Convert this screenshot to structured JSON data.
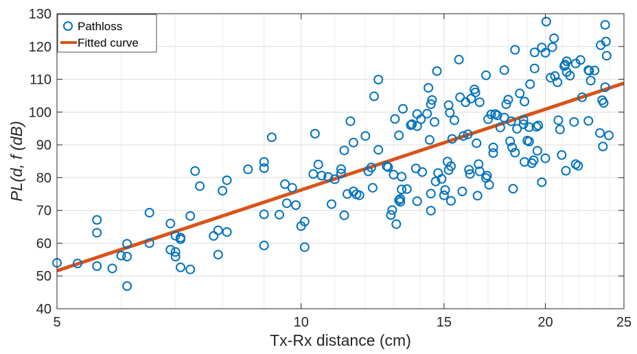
{
  "chart_data": {
    "type": "scatter",
    "xlabel": "Tx-Rx distance (cm)",
    "ylabel": "PL(d, f (dB)",
    "x_scale": "log",
    "xlim": [
      5,
      25
    ],
    "ylim": [
      40,
      130
    ],
    "x_ticks": [
      5,
      10,
      15,
      20,
      25
    ],
    "y_ticks": [
      40,
      50,
      60,
      70,
      80,
      90,
      100,
      110,
      120,
      130
    ],
    "grid": true,
    "legend_position": "top-left",
    "series": [
      {
        "name": "Pathloss",
        "style": "circle-marker",
        "color": "#0072BD",
        "points": [
          [
            5.0,
            54.0
          ],
          [
            5.3,
            53.8
          ],
          [
            5.6,
            53.0
          ],
          [
            5.6,
            63.2
          ],
          [
            5.6,
            67.1
          ],
          [
            5.85,
            52.3
          ],
          [
            6.0,
            56.2
          ],
          [
            6.1,
            55.9
          ],
          [
            6.1,
            59.8
          ],
          [
            6.1,
            46.9
          ],
          [
            6.5,
            60.0
          ],
          [
            6.5,
            69.3
          ],
          [
            6.9,
            66.0
          ],
          [
            6.9,
            58.0
          ],
          [
            7.0,
            57.3
          ],
          [
            7.0,
            55.9
          ],
          [
            7.0,
            62.3
          ],
          [
            7.1,
            61.7
          ],
          [
            7.1,
            61.2
          ],
          [
            7.1,
            52.6
          ],
          [
            7.3,
            52.0
          ],
          [
            7.3,
            68.3
          ],
          [
            7.4,
            82.0
          ],
          [
            7.5,
            77.4
          ],
          [
            7.8,
            62.2
          ],
          [
            7.9,
            56.5
          ],
          [
            7.9,
            63.9
          ],
          [
            8.0,
            76.0
          ],
          [
            8.1,
            79.2
          ],
          [
            8.1,
            63.4
          ],
          [
            8.6,
            82.5
          ],
          [
            9.0,
            59.3
          ],
          [
            9.0,
            68.8
          ],
          [
            9.0,
            82.9
          ],
          [
            9.0,
            84.8
          ],
          [
            9.2,
            92.3
          ],
          [
            9.4,
            68.7
          ],
          [
            9.55,
            78.0
          ],
          [
            9.6,
            72.2
          ],
          [
            9.75,
            76.9
          ],
          [
            9.85,
            71.6
          ],
          [
            10.0,
            65.2
          ],
          [
            10.1,
            58.8
          ],
          [
            10.1,
            66.6
          ],
          [
            10.35,
            81.1
          ],
          [
            10.4,
            93.4
          ],
          [
            10.5,
            84.0
          ],
          [
            10.6,
            80.6
          ],
          [
            10.8,
            80.2
          ],
          [
            10.9,
            71.9
          ],
          [
            11.0,
            79.5
          ],
          [
            11.2,
            82.6
          ],
          [
            11.2,
            81.3
          ],
          [
            11.3,
            88.3
          ],
          [
            11.3,
            68.5
          ],
          [
            11.4,
            75.0
          ],
          [
            11.5,
            97.2
          ],
          [
            11.6,
            90.7
          ],
          [
            11.6,
            75.8
          ],
          [
            11.7,
            74.9
          ],
          [
            11.8,
            74.6
          ],
          [
            12.0,
            92.7
          ],
          [
            12.1,
            81.9
          ],
          [
            12.2,
            83.1
          ],
          [
            12.25,
            76.9
          ],
          [
            12.3,
            104.8
          ],
          [
            12.45,
            88.5
          ],
          [
            12.45,
            109.9
          ],
          [
            12.75,
            83.5
          ],
          [
            12.8,
            83.2
          ],
          [
            12.9,
            68.6
          ],
          [
            12.95,
            70.1
          ],
          [
            13.0,
            80.9
          ],
          [
            13.05,
            97.9
          ],
          [
            13.1,
            65.8
          ],
          [
            13.2,
            92.9
          ],
          [
            13.2,
            73.1
          ],
          [
            13.25,
            72.6
          ],
          [
            13.25,
            73.5
          ],
          [
            13.3,
            76.4
          ],
          [
            13.3,
            80.3
          ],
          [
            13.35,
            101.0
          ],
          [
            13.5,
            76.5
          ],
          [
            13.65,
            96.0
          ],
          [
            13.7,
            96.3
          ],
          [
            13.85,
            82.8
          ],
          [
            13.9,
            95.7
          ],
          [
            13.9,
            99.4
          ],
          [
            13.9,
            72.8
          ],
          [
            14.05,
            97.8
          ],
          [
            14.1,
            81.7
          ],
          [
            14.3,
            99.5
          ],
          [
            14.35,
            107.4
          ],
          [
            14.4,
            91.5
          ],
          [
            14.45,
            102.4
          ],
          [
            14.45,
            75.1
          ],
          [
            14.45,
            69.9
          ],
          [
            14.5,
            103.7
          ],
          [
            14.6,
            97.0
          ],
          [
            14.65,
            78.8
          ],
          [
            14.7,
            112.5
          ],
          [
            14.75,
            81.4
          ],
          [
            14.9,
            79.6
          ],
          [
            15.0,
            74.6
          ],
          [
            15.05,
            76.2
          ],
          [
            15.15,
            84.9
          ],
          [
            15.2,
            82.3
          ],
          [
            15.2,
            102.1
          ],
          [
            15.25,
            99.8
          ],
          [
            15.3,
            72.9
          ],
          [
            15.3,
            83.5
          ],
          [
            15.35,
            91.8
          ],
          [
            15.45,
            97.5
          ],
          [
            15.65,
            116.0
          ],
          [
            15.7,
            104.5
          ],
          [
            15.8,
            75.8
          ],
          [
            15.85,
            92.7
          ],
          [
            15.95,
            103.0
          ],
          [
            16.05,
            93.2
          ],
          [
            16.1,
            82.4
          ],
          [
            16.15,
            81.1
          ],
          [
            16.2,
            104.1
          ],
          [
            16.35,
            106.9
          ],
          [
            16.4,
            106.0
          ],
          [
            16.45,
            90.5
          ],
          [
            16.5,
            74.5
          ],
          [
            16.55,
            84.1
          ],
          [
            16.6,
            81.9
          ],
          [
            16.6,
            103.0
          ],
          [
            16.9,
            111.2
          ],
          [
            16.9,
            79.9
          ],
          [
            16.95,
            80.6
          ],
          [
            17.0,
            97.8
          ],
          [
            17.05,
            77.8
          ],
          [
            17.15,
            99.3
          ],
          [
            17.25,
            87.5
          ],
          [
            17.25,
            89.2
          ],
          [
            17.35,
            99.4
          ],
          [
            17.45,
            99.0
          ],
          [
            17.6,
            95.3
          ],
          [
            17.8,
            98.3
          ],
          [
            17.8,
            112.8
          ],
          [
            17.9,
            102.4
          ],
          [
            18.0,
            103.8
          ],
          [
            18.1,
            91.1
          ],
          [
            18.15,
            97.2
          ],
          [
            18.2,
            89.2
          ],
          [
            18.25,
            76.6
          ],
          [
            18.35,
            87.6
          ],
          [
            18.35,
            119.0
          ],
          [
            18.45,
            94.9
          ],
          [
            18.6,
            105.7
          ],
          [
            18.8,
            97.6
          ],
          [
            18.8,
            96.3
          ],
          [
            18.85,
            84.8
          ],
          [
            18.85,
            103.2
          ],
          [
            19.0,
            91.3
          ],
          [
            19.1,
            91.0
          ],
          [
            19.1,
            95.4
          ],
          [
            19.15,
            108.5
          ],
          [
            19.25,
            84.4
          ],
          [
            19.35,
            85.3
          ],
          [
            19.4,
            113.3
          ],
          [
            19.4,
            118.2
          ],
          [
            19.5,
            95.5
          ],
          [
            19.55,
            88.2
          ],
          [
            19.6,
            95.9
          ],
          [
            19.8,
            78.6
          ],
          [
            19.8,
            119.7
          ],
          [
            20.0,
            85.9
          ],
          [
            20.0,
            118.1
          ],
          [
            20.05,
            127.6
          ],
          [
            20.3,
            110.5
          ],
          [
            20.4,
            119.8
          ],
          [
            20.5,
            122.5
          ],
          [
            20.55,
            111.0
          ],
          [
            20.7,
            109.1
          ],
          [
            20.75,
            97.5
          ],
          [
            20.85,
            94.7
          ],
          [
            20.95,
            86.9
          ],
          [
            21.1,
            114.0
          ],
          [
            21.15,
            114.5
          ],
          [
            21.2,
            82.1
          ],
          [
            21.25,
            112.2
          ],
          [
            21.25,
            115.5
          ],
          [
            21.45,
            111.1
          ],
          [
            21.7,
            97.0
          ],
          [
            21.8,
            114.8
          ],
          [
            21.8,
            84.1
          ],
          [
            21.95,
            83.6
          ],
          [
            22.1,
            115.9
          ],
          [
            22.2,
            104.5
          ],
          [
            22.6,
            97.3
          ],
          [
            22.6,
            112.8
          ],
          [
            22.65,
            112.6
          ],
          [
            22.75,
            109.6
          ],
          [
            23.0,
            112.7
          ],
          [
            23.35,
            93.6
          ],
          [
            23.4,
            120.4
          ],
          [
            23.5,
            103.6
          ],
          [
            23.55,
            89.5
          ],
          [
            23.6,
            102.8
          ],
          [
            23.7,
            107.6
          ],
          [
            23.7,
            126.6
          ],
          [
            23.75,
            121.5
          ],
          [
            23.8,
            117.2
          ],
          [
            23.95,
            92.9
          ]
        ]
      },
      {
        "name": "Fitted curve",
        "style": "line",
        "color": "#D95319",
        "points": [
          [
            5,
            51.6
          ],
          [
            25,
            108.8
          ]
        ]
      }
    ]
  }
}
